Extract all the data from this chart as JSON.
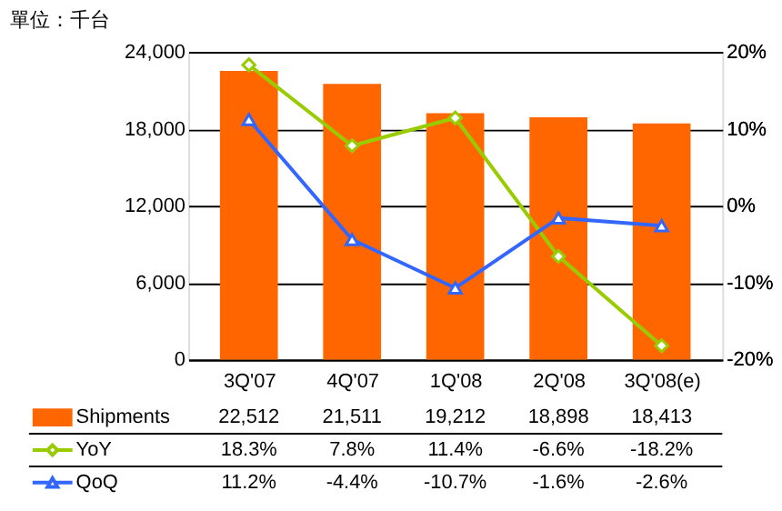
{
  "chart_data": {
    "type": "bar",
    "title": "單位：千台",
    "categories": [
      "3Q'07",
      "4Q'07",
      "1Q'08",
      "2Q'08",
      "3Q'08(e)"
    ],
    "series": [
      {
        "name": "Shipments",
        "color": "#ff6600",
        "values": [
          22512,
          21511,
          19212,
          18898,
          18413
        ],
        "value_labels": [
          "22,512",
          "21,511",
          "19,212",
          "18,898",
          "18,413"
        ]
      },
      {
        "name": "YoY",
        "type": "line",
        "axis": "y2",
        "marker": "diamond",
        "color": "#99cc00",
        "values": [
          18.3,
          7.8,
          11.4,
          -6.6,
          -18.2
        ],
        "value_labels": [
          "18.3%",
          "7.8%",
          "11.4%",
          "-6.6%",
          "-18.2%"
        ]
      },
      {
        "name": "QoQ",
        "type": "line",
        "axis": "y2",
        "marker": "triangle",
        "color": "#3366ff",
        "values": [
          11.2,
          -4.4,
          -10.7,
          -1.6,
          -2.6
        ],
        "value_labels": [
          "11.2%",
          "-4.4%",
          "-10.7%",
          "-1.6%",
          "-2.6%"
        ]
      }
    ],
    "ylim": [
      0,
      24000
    ],
    "yticks": [
      0,
      {
        "value": 6000,
        "label": "6,000"
      },
      {
        "value": 12000,
        "label": "12,000"
      },
      {
        "value": 18000,
        "label": "18,000"
      },
      {
        "value": 24000,
        "label": "24,000"
      }
    ],
    "y2lim": [
      -20,
      20
    ],
    "y2ticks": [
      {
        "value": -20,
        "label": "-20%"
      },
      {
        "value": -10,
        "label": "-10%"
      },
      {
        "value": 0,
        "label": "0%"
      },
      {
        "value": 10,
        "label": "10%"
      },
      {
        "value": 20,
        "label": "20%"
      }
    ],
    "grid": "y",
    "legend": "bottom"
  }
}
